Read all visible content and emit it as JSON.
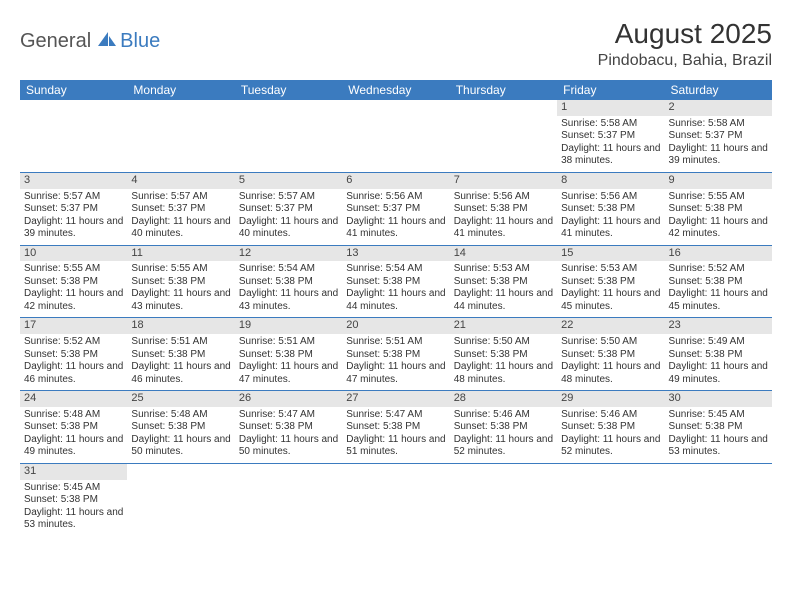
{
  "logo": {
    "part1": "General",
    "part2": "Blue"
  },
  "title": "August 2025",
  "location": "Pindobacu, Bahia, Brazil",
  "colors": {
    "header_bg": "#3b7bbf",
    "header_text": "#ffffff",
    "daynum_bg": "#e6e6e6",
    "row_divider": "#3b7bbf"
  },
  "weekdays": [
    "Sunday",
    "Monday",
    "Tuesday",
    "Wednesday",
    "Thursday",
    "Friday",
    "Saturday"
  ],
  "weeks": [
    [
      null,
      null,
      null,
      null,
      null,
      {
        "n": "1",
        "sr": "Sunrise: 5:58 AM",
        "ss": "Sunset: 5:37 PM",
        "dl": "Daylight: 11 hours and 38 minutes."
      },
      {
        "n": "2",
        "sr": "Sunrise: 5:58 AM",
        "ss": "Sunset: 5:37 PM",
        "dl": "Daylight: 11 hours and 39 minutes."
      }
    ],
    [
      {
        "n": "3",
        "sr": "Sunrise: 5:57 AM",
        "ss": "Sunset: 5:37 PM",
        "dl": "Daylight: 11 hours and 39 minutes."
      },
      {
        "n": "4",
        "sr": "Sunrise: 5:57 AM",
        "ss": "Sunset: 5:37 PM",
        "dl": "Daylight: 11 hours and 40 minutes."
      },
      {
        "n": "5",
        "sr": "Sunrise: 5:57 AM",
        "ss": "Sunset: 5:37 PM",
        "dl": "Daylight: 11 hours and 40 minutes."
      },
      {
        "n": "6",
        "sr": "Sunrise: 5:56 AM",
        "ss": "Sunset: 5:37 PM",
        "dl": "Daylight: 11 hours and 41 minutes."
      },
      {
        "n": "7",
        "sr": "Sunrise: 5:56 AM",
        "ss": "Sunset: 5:38 PM",
        "dl": "Daylight: 11 hours and 41 minutes."
      },
      {
        "n": "8",
        "sr": "Sunrise: 5:56 AM",
        "ss": "Sunset: 5:38 PM",
        "dl": "Daylight: 11 hours and 41 minutes."
      },
      {
        "n": "9",
        "sr": "Sunrise: 5:55 AM",
        "ss": "Sunset: 5:38 PM",
        "dl": "Daylight: 11 hours and 42 minutes."
      }
    ],
    [
      {
        "n": "10",
        "sr": "Sunrise: 5:55 AM",
        "ss": "Sunset: 5:38 PM",
        "dl": "Daylight: 11 hours and 42 minutes."
      },
      {
        "n": "11",
        "sr": "Sunrise: 5:55 AM",
        "ss": "Sunset: 5:38 PM",
        "dl": "Daylight: 11 hours and 43 minutes."
      },
      {
        "n": "12",
        "sr": "Sunrise: 5:54 AM",
        "ss": "Sunset: 5:38 PM",
        "dl": "Daylight: 11 hours and 43 minutes."
      },
      {
        "n": "13",
        "sr": "Sunrise: 5:54 AM",
        "ss": "Sunset: 5:38 PM",
        "dl": "Daylight: 11 hours and 44 minutes."
      },
      {
        "n": "14",
        "sr": "Sunrise: 5:53 AM",
        "ss": "Sunset: 5:38 PM",
        "dl": "Daylight: 11 hours and 44 minutes."
      },
      {
        "n": "15",
        "sr": "Sunrise: 5:53 AM",
        "ss": "Sunset: 5:38 PM",
        "dl": "Daylight: 11 hours and 45 minutes."
      },
      {
        "n": "16",
        "sr": "Sunrise: 5:52 AM",
        "ss": "Sunset: 5:38 PM",
        "dl": "Daylight: 11 hours and 45 minutes."
      }
    ],
    [
      {
        "n": "17",
        "sr": "Sunrise: 5:52 AM",
        "ss": "Sunset: 5:38 PM",
        "dl": "Daylight: 11 hours and 46 minutes."
      },
      {
        "n": "18",
        "sr": "Sunrise: 5:51 AM",
        "ss": "Sunset: 5:38 PM",
        "dl": "Daylight: 11 hours and 46 minutes."
      },
      {
        "n": "19",
        "sr": "Sunrise: 5:51 AM",
        "ss": "Sunset: 5:38 PM",
        "dl": "Daylight: 11 hours and 47 minutes."
      },
      {
        "n": "20",
        "sr": "Sunrise: 5:51 AM",
        "ss": "Sunset: 5:38 PM",
        "dl": "Daylight: 11 hours and 47 minutes."
      },
      {
        "n": "21",
        "sr": "Sunrise: 5:50 AM",
        "ss": "Sunset: 5:38 PM",
        "dl": "Daylight: 11 hours and 48 minutes."
      },
      {
        "n": "22",
        "sr": "Sunrise: 5:50 AM",
        "ss": "Sunset: 5:38 PM",
        "dl": "Daylight: 11 hours and 48 minutes."
      },
      {
        "n": "23",
        "sr": "Sunrise: 5:49 AM",
        "ss": "Sunset: 5:38 PM",
        "dl": "Daylight: 11 hours and 49 minutes."
      }
    ],
    [
      {
        "n": "24",
        "sr": "Sunrise: 5:48 AM",
        "ss": "Sunset: 5:38 PM",
        "dl": "Daylight: 11 hours and 49 minutes."
      },
      {
        "n": "25",
        "sr": "Sunrise: 5:48 AM",
        "ss": "Sunset: 5:38 PM",
        "dl": "Daylight: 11 hours and 50 minutes."
      },
      {
        "n": "26",
        "sr": "Sunrise: 5:47 AM",
        "ss": "Sunset: 5:38 PM",
        "dl": "Daylight: 11 hours and 50 minutes."
      },
      {
        "n": "27",
        "sr": "Sunrise: 5:47 AM",
        "ss": "Sunset: 5:38 PM",
        "dl": "Daylight: 11 hours and 51 minutes."
      },
      {
        "n": "28",
        "sr": "Sunrise: 5:46 AM",
        "ss": "Sunset: 5:38 PM",
        "dl": "Daylight: 11 hours and 52 minutes."
      },
      {
        "n": "29",
        "sr": "Sunrise: 5:46 AM",
        "ss": "Sunset: 5:38 PM",
        "dl": "Daylight: 11 hours and 52 minutes."
      },
      {
        "n": "30",
        "sr": "Sunrise: 5:45 AM",
        "ss": "Sunset: 5:38 PM",
        "dl": "Daylight: 11 hours and 53 minutes."
      }
    ],
    [
      {
        "n": "31",
        "sr": "Sunrise: 5:45 AM",
        "ss": "Sunset: 5:38 PM",
        "dl": "Daylight: 11 hours and 53 minutes."
      },
      null,
      null,
      null,
      null,
      null,
      null
    ]
  ]
}
